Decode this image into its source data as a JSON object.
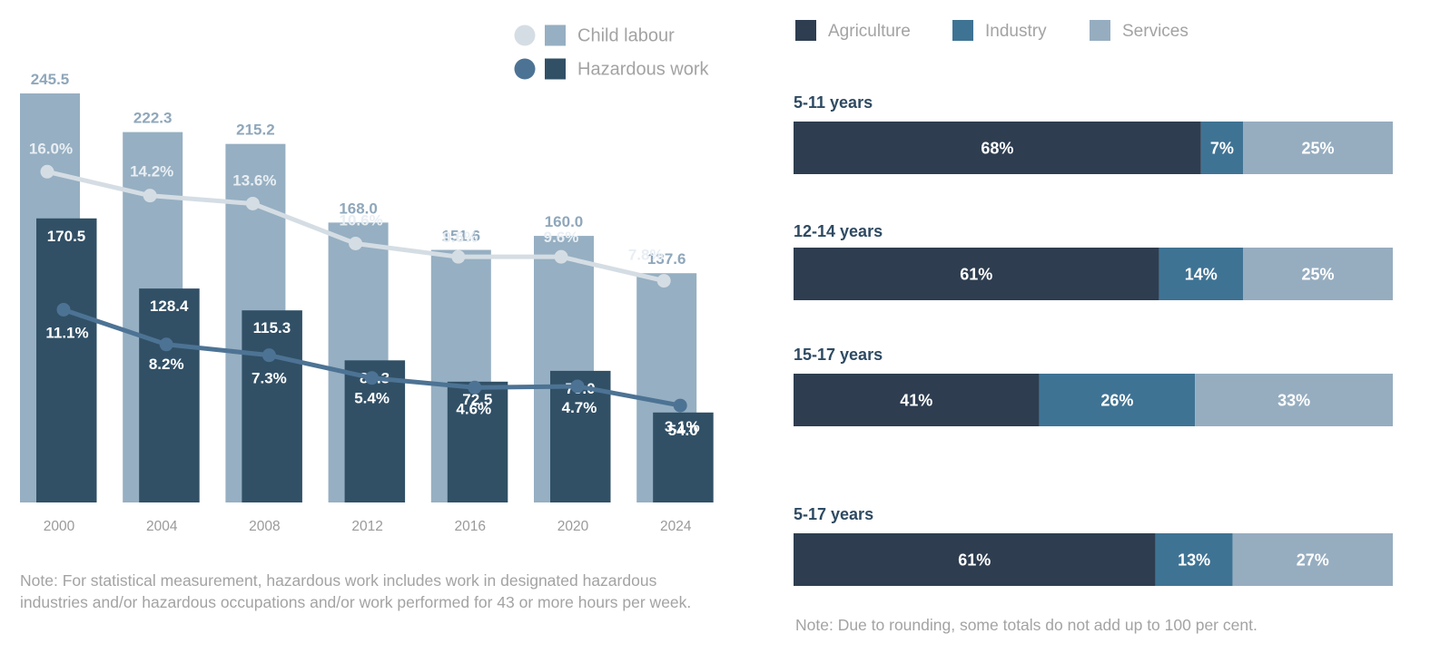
{
  "chart_data": [
    {
      "type": "bar",
      "title": "",
      "xlabel": "",
      "ylabel": "",
      "categories": [
        "2000",
        "2004",
        "2008",
        "2012",
        "2016",
        "2020",
        "2024"
      ],
      "ylim": [
        0,
        260
      ],
      "grid": false,
      "legend_position": "top-right",
      "series": [
        {
          "name": "Child labour",
          "kind": "bar",
          "color": "#96afc2",
          "values": [
            245.5,
            222.3,
            215.2,
            168.0,
            151.6,
            160.0,
            137.6
          ],
          "labels": [
            "245.5",
            "222.3",
            "215.2",
            "168.0",
            "151.6",
            "160.0",
            "137.6"
          ]
        },
        {
          "name": "Hazardous work",
          "kind": "bar",
          "color": "#315066",
          "values": [
            170.5,
            128.4,
            115.3,
            85.3,
            72.5,
            79.0,
            54.0
          ],
          "labels": [
            "170.5",
            "128.4",
            "115.3",
            "85.3",
            "72.5",
            "79.0",
            "54.0"
          ]
        },
        {
          "name": "Child labour",
          "kind": "line",
          "unit": "%",
          "color": "#d5dde4",
          "values": [
            16.0,
            14.2,
            13.6,
            10.6,
            9.6,
            9.6,
            7.8
          ],
          "labels": [
            "16.0%",
            "14.2%",
            "13.6%",
            "10.6%",
            "9.6%",
            "9.6%",
            "7.8%"
          ]
        },
        {
          "name": "Hazardous work",
          "kind": "line",
          "unit": "%",
          "color": "#4d7394",
          "values": [
            11.1,
            8.2,
            7.3,
            5.4,
            4.6,
            4.7,
            3.1
          ],
          "labels": [
            "11.1%",
            "8.2%",
            "7.3%",
            "5.4%",
            "4.6%",
            "4.7%",
            "3.1%"
          ]
        }
      ],
      "legend": [
        {
          "label": "Child labour",
          "dot_color": "#d5dde4",
          "square_color": "#96afc2"
        },
        {
          "label": "Hazardous work",
          "dot_color": "#4d7394",
          "square_color": "#315066"
        }
      ]
    },
    {
      "type": "bar",
      "orientation": "horizontal",
      "stacked": true,
      "title": "",
      "xlabel": "",
      "ylabel": "",
      "unit": "%",
      "categories": [
        "5-11 years",
        "12-14 years",
        "15-17 years",
        "5-17 years"
      ],
      "xlim": [
        0,
        100
      ],
      "legend_position": "top",
      "series": [
        {
          "name": "Agriculture",
          "color": "#2e3d50",
          "values": [
            68,
            61,
            41,
            61
          ],
          "labels": [
            "68%",
            "61%",
            "41%",
            "61%"
          ]
        },
        {
          "name": "Industry",
          "color": "#3f7394",
          "values": [
            7,
            14,
            26,
            13
          ],
          "labels": [
            "7%",
            "14%",
            "26%",
            "13%"
          ]
        },
        {
          "name": "Services",
          "color": "#96adc0",
          "values": [
            25,
            25,
            33,
            27
          ],
          "labels": [
            "25%",
            "25%",
            "33%",
            "27%"
          ]
        }
      ]
    }
  ],
  "notes": {
    "left": "Note: For statistical measurement, hazardous work includes work in designated hazardous industries and/or hazardous occupations and/or work performed for 43 or more hours per week.",
    "right": "Note: Due to rounding, some totals do not add up to 100 per cent."
  }
}
